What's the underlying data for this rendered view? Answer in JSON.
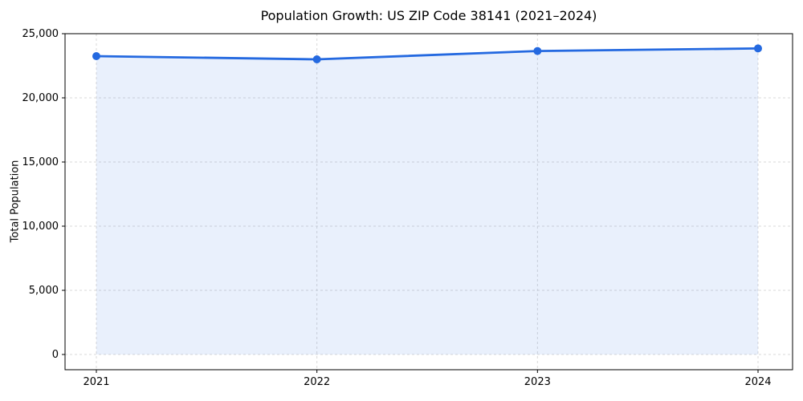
{
  "chart_data": {
    "type": "area",
    "title": "Population Growth: US ZIP Code 38141 (2021–2024)",
    "xlabel": "",
    "ylabel": "Total Population",
    "x": [
      2021,
      2022,
      2023,
      2024
    ],
    "xtick_labels": [
      "2021",
      "2022",
      "2023",
      "2024"
    ],
    "series": [
      {
        "name": "Total Population",
        "values": [
          23250,
          23000,
          23650,
          23850
        ]
      }
    ],
    "yticks": [
      0,
      5000,
      10000,
      15000,
      20000,
      25000
    ],
    "ytick_labels": [
      "0",
      "5,000",
      "10,000",
      "15,000",
      "20,000",
      "25,000"
    ],
    "ylim": [
      0,
      25000
    ],
    "grid": true,
    "legend": false,
    "marker": "circle",
    "colors": {
      "line": "#2469e0",
      "marker": "#2469e0",
      "fill": "#2469e0",
      "fill_opacity": 0.1,
      "grid": "#d9d9d9",
      "spine": "#000000",
      "text": "#000000",
      "background": "#ffffff"
    }
  }
}
